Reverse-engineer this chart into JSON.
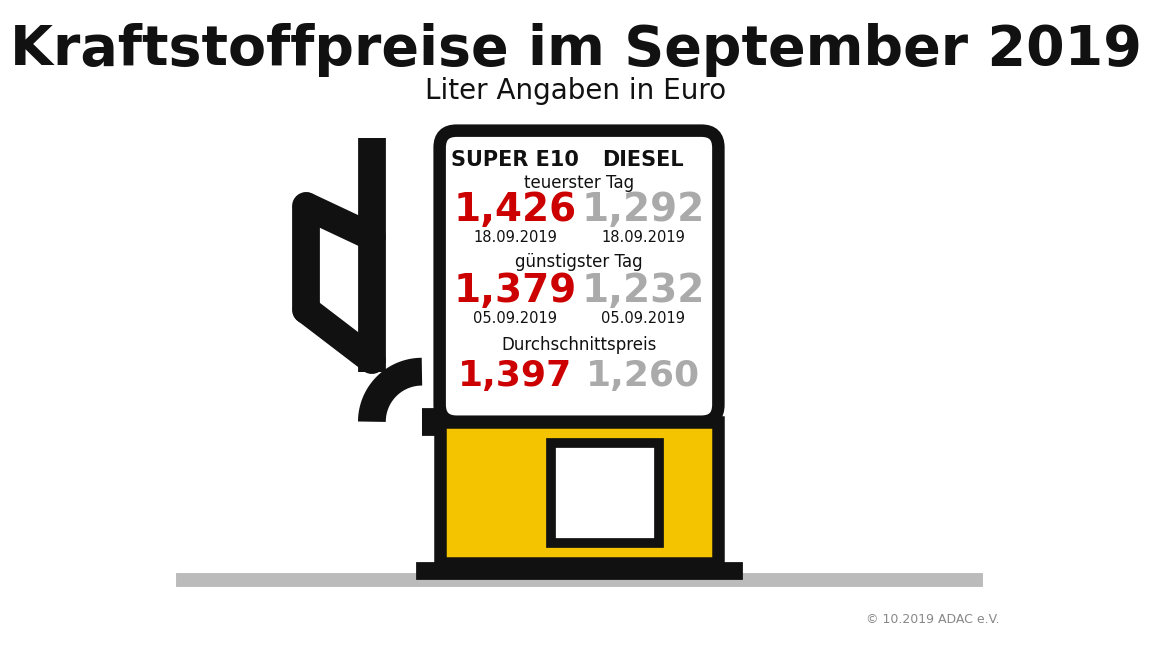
{
  "title": "Kraftstoffpreise im September 2019",
  "subtitle": "Liter Angaben in Euro",
  "col1_header": "SUPER E10",
  "col2_header": "DIESEL",
  "teuerster_label": "teuerster Tag",
  "teuerster_e10_price": "1,426",
  "teuerster_diesel_price": "1,292",
  "teuerster_e10_date": "18.09.2019",
  "teuerster_diesel_date": "18.09.2019",
  "guenstigster_label": "günstigster Tag",
  "guenstigster_e10_price": "1,379",
  "guenstigster_diesel_price": "1,232",
  "guenstigster_e10_date": "05.09.2019",
  "guenstigster_diesel_date": "05.09.2019",
  "durchschnitt_label": "Durchschnittspreis",
  "durchschnitt_e10_price": "1,397",
  "durchschnitt_diesel_price": "1,260",
  "color_e10": "#cc0000",
  "color_diesel": "#aaaaaa",
  "color_black": "#111111",
  "color_yellow": "#f5c400",
  "color_bg": "#ffffff",
  "copyright": "© 10.2019 ADAC e.V.",
  "title_fontsize": 40,
  "subtitle_fontsize": 20,
  "header_fontsize": 15,
  "label_fontsize": 12,
  "price_fontsize_big": 28,
  "price_fontsize_avg": 26,
  "date_fontsize": 10.5,
  "ground_color": "#bbbbbb"
}
